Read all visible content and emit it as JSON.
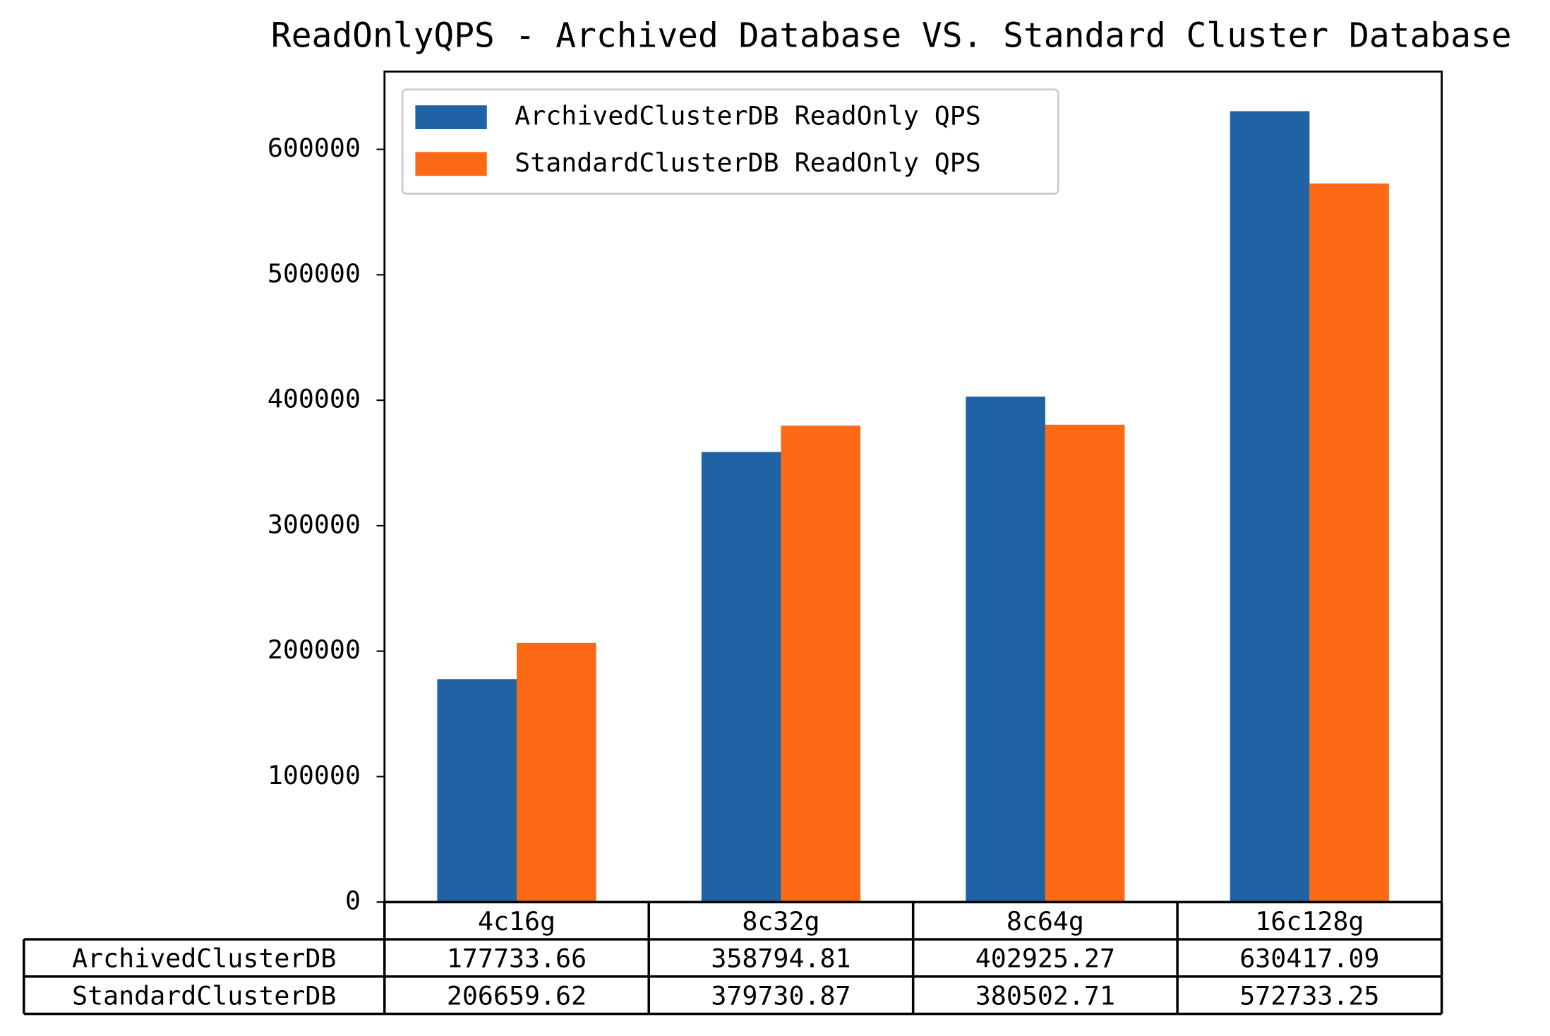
{
  "chart_data": {
    "type": "bar",
    "title": "ReadOnlyQPS - Archived Database VS. Standard Cluster Database",
    "categories": [
      "4c16g",
      "8c32g",
      "8c64g",
      "16c128g"
    ],
    "series": [
      {
        "name": "ArchivedClusterDB ReadOnly QPS",
        "color": "#1f63a5",
        "values": [
          177733.66,
          358794.81,
          402925.27,
          630417.09
        ]
      },
      {
        "name": "StandardClusterDB ReadOnly QPS",
        "color": "#fc6a15",
        "values": [
          206659.62,
          379730.87,
          380502.71,
          572733.25
        ]
      }
    ],
    "row_labels": [
      "ArchivedClusterDB",
      "StandardClusterDB"
    ],
    "ylim": [
      0,
      662000
    ],
    "yticks": [
      0,
      100000,
      200000,
      300000,
      400000,
      500000,
      600000
    ],
    "legend": "upper left",
    "grid": false
  }
}
